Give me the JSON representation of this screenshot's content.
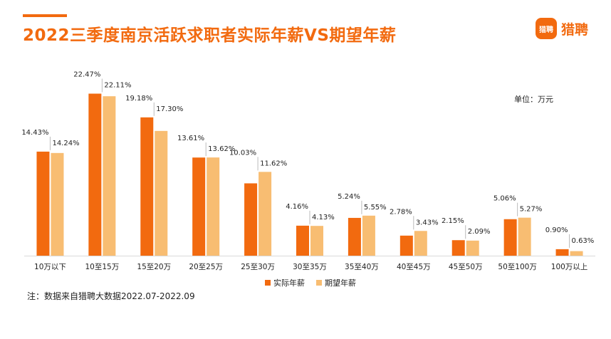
{
  "title": "2022三季度南京活跃求职者实际年薪VS期望年薪",
  "logo": {
    "badge_text": "猎聘",
    "text": "猎聘"
  },
  "unit_label": "单位：万元",
  "note": "注：数据来自猎聘大数据2022.07-2022.09",
  "colors": {
    "accent": "#f26a0f",
    "actual": "#f26a0f",
    "expected": "#f8bd72"
  },
  "chart_data": {
    "type": "bar",
    "title": "2022三季度南京活跃求职者实际年薪VS期望年薪",
    "categories": [
      "10万以下",
      "10至15万",
      "15至20万",
      "20至25万",
      "25至30万",
      "30至35万",
      "35至40万",
      "40至45万",
      "45至50万",
      "50至100万",
      "100万以上"
    ],
    "series": [
      {
        "name": "实际年薪",
        "values": [
          14.43,
          22.47,
          19.18,
          13.61,
          10.03,
          4.16,
          5.24,
          2.78,
          2.15,
          5.06,
          0.9
        ],
        "labels": [
          "14.43%",
          "22.47%",
          "19.18%",
          "13.61%",
          "10.03%",
          "4.16%",
          "5.24%",
          "2.78%",
          "2.15%",
          "5.06%",
          "0.90%"
        ]
      },
      {
        "name": "期望年薪",
        "values": [
          14.24,
          22.11,
          17.3,
          13.62,
          11.62,
          4.13,
          5.55,
          3.43,
          2.09,
          5.27,
          0.63
        ],
        "labels": [
          "14.24%",
          "22.11%",
          "17.30%",
          "13.62%",
          "11.62%",
          "4.13%",
          "5.55%",
          "3.43%",
          "2.09%",
          "5.27%",
          "0.63%"
        ]
      }
    ],
    "ylim": [
      0,
      24
    ],
    "grid": false,
    "legend_position": "bottom"
  }
}
